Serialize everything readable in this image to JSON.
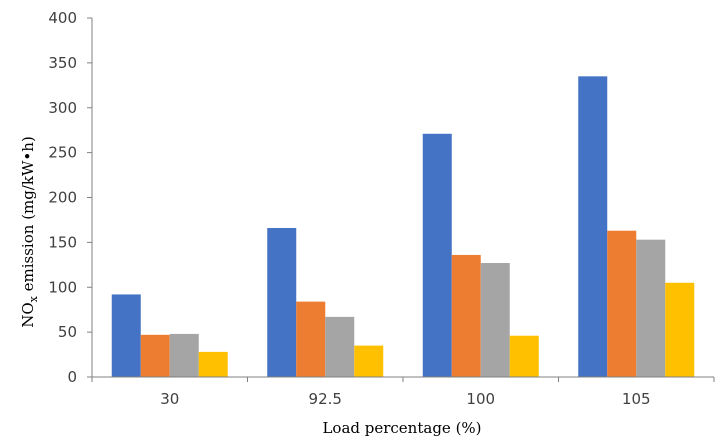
{
  "chart_data": {
    "type": "bar",
    "categories": [
      "30",
      "92.5",
      "100",
      "105"
    ],
    "series": [
      {
        "values": [
          92,
          166,
          271,
          335
        ],
        "color": "#4472C4"
      },
      {
        "values": [
          47,
          84,
          136,
          163
        ],
        "color": "#ED7D31"
      },
      {
        "values": [
          48,
          67,
          127,
          153
        ],
        "color": "#A5A5A5"
      },
      {
        "values": [
          28,
          35,
          46,
          105
        ],
        "color": "#FFC000"
      }
    ],
    "ylim": [
      0,
      400
    ],
    "yticks": [
      "0",
      "50",
      "100",
      "150",
      "200",
      "250",
      "300",
      "350",
      "400"
    ],
    "ylabel": {
      "main": "NO",
      "subscript": "x",
      "rest": " emission (mg/kW•h)"
    },
    "xlabel": "Load percentage (%)",
    "grid": false,
    "legend": "none"
  }
}
